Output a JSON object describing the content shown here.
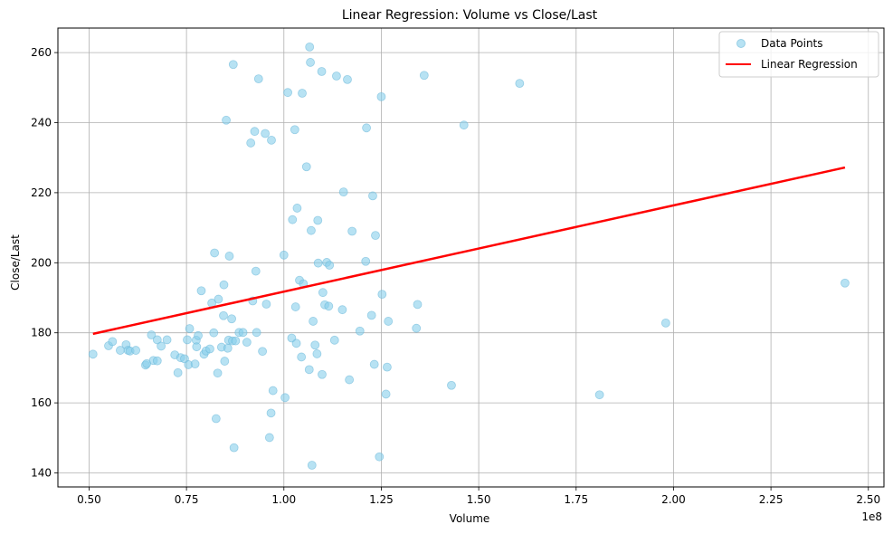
{
  "chart_data": {
    "type": "scatter",
    "title": "Linear Regression: Volume vs Close/Last",
    "xlabel": "Volume",
    "ylabel": "Close/Last",
    "x_offset_label": "1e8",
    "xlim": [
      0.42,
      2.54
    ],
    "ylim": [
      136,
      267
    ],
    "x_ticks": [
      0.5,
      0.75,
      1.0,
      1.25,
      1.5,
      1.75,
      2.0,
      2.25,
      2.5
    ],
    "x_tick_labels": [
      "0.50",
      "0.75",
      "1.00",
      "1.25",
      "1.50",
      "1.75",
      "2.00",
      "2.25",
      "2.50"
    ],
    "y_ticks": [
      140,
      160,
      180,
      200,
      220,
      240,
      260
    ],
    "y_tick_labels": [
      "140",
      "160",
      "180",
      "200",
      "220",
      "240",
      "260"
    ],
    "grid": true,
    "legend_position": "top-right",
    "colors": {
      "points": "#87ceeb",
      "points_edge": "#6bb8d8",
      "line": "#ff0000"
    },
    "series": [
      {
        "name": "Data Points",
        "type": "scatter",
        "points": [
          [
            0.51,
            173.9
          ],
          [
            0.55,
            176.3
          ],
          [
            0.56,
            177.5
          ],
          [
            0.58,
            175.0
          ],
          [
            0.595,
            176.6
          ],
          [
            0.6,
            175.0
          ],
          [
            0.605,
            174.8
          ],
          [
            0.62,
            175.0
          ],
          [
            0.645,
            170.8
          ],
          [
            0.648,
            171.2
          ],
          [
            0.66,
            179.4
          ],
          [
            0.665,
            172.1
          ],
          [
            0.675,
            172.0
          ],
          [
            0.675,
            178.0
          ],
          [
            0.685,
            176.2
          ],
          [
            0.7,
            178.0
          ],
          [
            0.72,
            173.7
          ],
          [
            0.728,
            168.6
          ],
          [
            0.735,
            172.9
          ],
          [
            0.745,
            172.6
          ],
          [
            0.752,
            178.0
          ],
          [
            0.755,
            170.9
          ],
          [
            0.758,
            181.2
          ],
          [
            0.772,
            171.1
          ],
          [
            0.775,
            177.9
          ],
          [
            0.776,
            176.0
          ],
          [
            0.78,
            179.2
          ],
          [
            0.788,
            192.0
          ],
          [
            0.795,
            173.9
          ],
          [
            0.8,
            174.8
          ],
          [
            0.81,
            175.4
          ],
          [
            0.815,
            188.5
          ],
          [
            0.82,
            180.0
          ],
          [
            0.822,
            202.8
          ],
          [
            0.826,
            155.5
          ],
          [
            0.83,
            168.5
          ],
          [
            0.832,
            189.6
          ],
          [
            0.84,
            175.9
          ],
          [
            0.845,
            184.9
          ],
          [
            0.846,
            193.7
          ],
          [
            0.848,
            171.9
          ],
          [
            0.852,
            240.7
          ],
          [
            0.856,
            175.6
          ],
          [
            0.858,
            177.9
          ],
          [
            0.86,
            201.9
          ],
          [
            0.866,
            184.0
          ],
          [
            0.868,
            177.7
          ],
          [
            0.87,
            256.6
          ],
          [
            0.872,
            147.2
          ],
          [
            0.876,
            177.7
          ],
          [
            0.885,
            180.1
          ],
          [
            0.895,
            180.1
          ],
          [
            0.905,
            177.3
          ],
          [
            0.915,
            234.2
          ],
          [
            0.92,
            189.1
          ],
          [
            0.925,
            237.5
          ],
          [
            0.928,
            197.6
          ],
          [
            0.93,
            180.1
          ],
          [
            0.935,
            252.5
          ],
          [
            0.945,
            174.7
          ],
          [
            0.952,
            236.9
          ],
          [
            0.955,
            188.2
          ],
          [
            0.963,
            150.1
          ],
          [
            0.967,
            157.1
          ],
          [
            0.968,
            235.0
          ],
          [
            0.972,
            163.5
          ],
          [
            1.0,
            202.2
          ],
          [
            1.003,
            161.5
          ],
          [
            1.01,
            248.6
          ],
          [
            1.02,
            178.5
          ],
          [
            1.022,
            212.3
          ],
          [
            1.028,
            238.0
          ],
          [
            1.03,
            187.4
          ],
          [
            1.032,
            177.0
          ],
          [
            1.034,
            215.6
          ],
          [
            1.04,
            195.0
          ],
          [
            1.045,
            173.1
          ],
          [
            1.047,
            248.4
          ],
          [
            1.05,
            194.0
          ],
          [
            1.058,
            227.4
          ],
          [
            1.065,
            169.5
          ],
          [
            1.066,
            261.6
          ],
          [
            1.068,
            257.2
          ],
          [
            1.07,
            209.2
          ],
          [
            1.072,
            142.2
          ],
          [
            1.075,
            183.3
          ],
          [
            1.08,
            176.5
          ],
          [
            1.085,
            174.0
          ],
          [
            1.087,
            212.1
          ],
          [
            1.088,
            199.9
          ],
          [
            1.097,
            254.6
          ],
          [
            1.098,
            168.1
          ],
          [
            1.1,
            191.5
          ],
          [
            1.105,
            188.0
          ],
          [
            1.11,
            200.1
          ],
          [
            1.115,
            187.6
          ],
          [
            1.117,
            199.3
          ],
          [
            1.13,
            177.9
          ],
          [
            1.135,
            253.3
          ],
          [
            1.15,
            186.6
          ],
          [
            1.153,
            220.2
          ],
          [
            1.163,
            252.3
          ],
          [
            1.168,
            166.6
          ],
          [
            1.175,
            209.0
          ],
          [
            1.195,
            180.5
          ],
          [
            1.21,
            200.4
          ],
          [
            1.212,
            238.5
          ],
          [
            1.225,
            185.0
          ],
          [
            1.228,
            219.1
          ],
          [
            1.232,
            171.0
          ],
          [
            1.235,
            207.8
          ],
          [
            1.245,
            144.6
          ],
          [
            1.25,
            247.4
          ],
          [
            1.252,
            191.0
          ],
          [
            1.262,
            162.5
          ],
          [
            1.265,
            170.2
          ],
          [
            1.268,
            183.3
          ],
          [
            1.34,
            181.3
          ],
          [
            1.343,
            188.1
          ],
          [
            1.36,
            253.5
          ],
          [
            1.43,
            165.0
          ],
          [
            1.462,
            239.3
          ],
          [
            1.605,
            251.2
          ],
          [
            1.81,
            162.3
          ],
          [
            1.98,
            182.8
          ],
          [
            2.44,
            194.2
          ]
        ]
      },
      {
        "name": "Linear Regression",
        "type": "line",
        "points": [
          [
            0.51,
            179.7
          ],
          [
            2.44,
            227.2
          ]
        ]
      }
    ]
  }
}
